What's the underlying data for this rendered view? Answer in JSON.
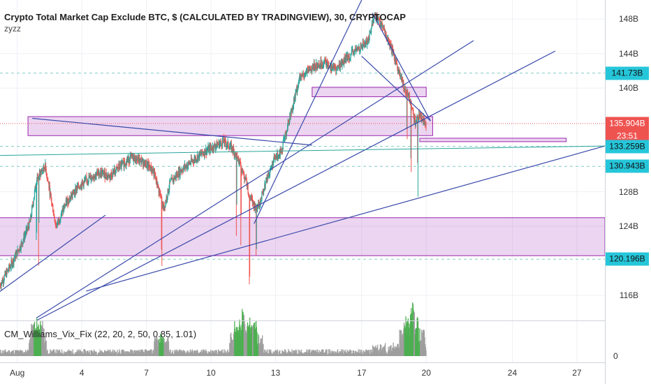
{
  "header": {
    "title": "Crypto Total Market Cap Exclude BTC, $ (CALCULATED BY TRADINGVIEW), 30, CRYPTOCAP",
    "subtitle": "zyzz"
  },
  "indicator": {
    "label": "CM_Williams_Vix_Fix (22, 20, 2, 50, 0.85, 1.01)",
    "axis_zero": "0"
  },
  "chart_data": {
    "type": "candlestick",
    "title": "Crypto Total Market Cap Exclude BTC, $ (CALCULATED BY TRADINGVIEW), 30, CRYPTOCAP",
    "y_unit": "B",
    "ylim": [
      113.1,
      150.2
    ],
    "y_ticks": [
      "148B",
      "144B",
      "140B",
      "128B",
      "124B",
      "116B"
    ],
    "x_ticks": [
      "Aug",
      "4",
      "7",
      "10",
      "13",
      "17",
      "20",
      "24",
      "27"
    ],
    "x_tick_days": [
      1,
      4,
      7,
      10,
      13,
      17,
      20,
      24,
      27
    ],
    "xlim_days": [
      0.2,
      28.3
    ],
    "price_path_days": [
      0.2,
      0.7,
      1.2,
      1.6,
      1.9,
      2.3,
      2.8,
      3.3,
      3.8,
      4.3,
      4.8,
      5.3,
      5.8,
      6.3,
      6.8,
      7.3,
      7.6,
      7.8,
      8.1,
      8.6,
      9.1,
      9.6,
      10.1,
      10.6,
      11.0,
      11.3,
      11.6,
      11.8,
      12.1,
      12.3,
      12.6,
      12.9,
      13.3,
      13.6,
      13.9,
      14.1,
      14.4,
      14.8,
      15.3,
      15.8,
      16.3,
      16.8,
      17.3,
      17.6,
      17.9,
      18.3,
      18.6,
      18.9,
      19.2,
      19.5,
      19.7,
      20.0
    ],
    "price_path_values": [
      117.2,
      119.5,
      122.0,
      124.5,
      129.5,
      131.0,
      124.0,
      126.8,
      128.5,
      129.5,
      130.2,
      129.8,
      131.0,
      132.0,
      131.5,
      130.5,
      128.0,
      126.0,
      129.0,
      130.5,
      131.5,
      132.5,
      133.2,
      133.8,
      133.0,
      131.5,
      129.5,
      127.5,
      126.0,
      127.0,
      129.5,
      131.5,
      133.0,
      136.0,
      139.0,
      141.0,
      141.8,
      142.5,
      143.0,
      142.2,
      143.5,
      144.5,
      145.5,
      148.5,
      147.5,
      145.0,
      143.0,
      140.5,
      139.0,
      136.0,
      137.0,
      135.9
    ],
    "last_price": 135.904,
    "series": [
      {
        "name": "Crypto Total Market Cap Exclude BTC",
        "last": 135.904
      }
    ],
    "price_labels": [
      {
        "text": "141.73B",
        "value": 141.73,
        "color": "#26c6da",
        "text_color": "#111"
      },
      {
        "text": "135.904B",
        "value": 135.904,
        "color": "#ef5350",
        "text_color": "#fff"
      },
      {
        "text": "23:51",
        "value": 134.4,
        "color": "#ef5350",
        "text_color": "#fff"
      },
      {
        "text": "133.259B",
        "value": 133.259,
        "color": "#26c6da",
        "text_color": "#111"
      },
      {
        "text": "130.943B",
        "value": 130.943,
        "color": "#26c6da",
        "text_color": "#111"
      },
      {
        "text": "120.196B",
        "value": 120.196,
        "color": "#26c6da",
        "text_color": "#111"
      }
    ],
    "zones": [
      {
        "x1": 1.5,
        "x2": 20.3,
        "y1": 134.5,
        "y2": 136.7
      },
      {
        "x1": 14.7,
        "x2": 20.0,
        "y1": 139.0,
        "y2": 140.1
      },
      {
        "x1": 0.0,
        "x2": 28.3,
        "y1": 120.6,
        "y2": 125.0
      },
      {
        "x1": 19.7,
        "x2": 26.5,
        "y1": 133.8,
        "y2": 134.2
      }
    ],
    "trendlines": [
      {
        "x1": 1.7,
        "y1": 136.5,
        "x2": 14.7,
        "y2": 133.4
      },
      {
        "x1": 0.0,
        "y1": 116.1,
        "x2": 5.1,
        "y2": 125.3
      },
      {
        "x1": 1.9,
        "y1": 113.4,
        "x2": 22.2,
        "y2": 145.5
      },
      {
        "x1": 1.9,
        "y1": 113.1,
        "x2": 26.0,
        "y2": 144.3
      },
      {
        "x1": 4.2,
        "y1": 116.5,
        "x2": 28.3,
        "y2": 133.3
      },
      {
        "x1": 12.0,
        "y1": 124.3,
        "x2": 17.0,
        "y2": 150.2
      },
      {
        "x1": 17.5,
        "y1": 148.7,
        "x2": 20.2,
        "y2": 136.2
      },
      {
        "x1": 17.0,
        "y1": 143.7,
        "x2": 20.2,
        "y2": 136.2
      },
      {
        "x1": 0.0,
        "y1": 132.2,
        "x2": 28.3,
        "y2": 133.3
      }
    ],
    "vix_fix_ylim": [
      0,
      4
    ],
    "vix_spikes_days": [
      1.9,
      2.0,
      7.7,
      11.2,
      11.4,
      11.8,
      12.1,
      19.1,
      19.3,
      19.6
    ]
  }
}
